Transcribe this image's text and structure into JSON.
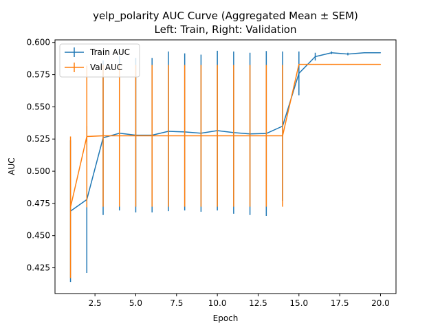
{
  "chart_data": {
    "type": "line",
    "title": "yelp_polarity AUC Curve (Aggregated Mean ± SEM)",
    "subtitle": "Left: Train, Right: Validation",
    "xlabel": "Epoch",
    "ylabel": "AUC",
    "xlim": [
      0.05,
      20.95
    ],
    "ylim": [
      0.405,
      0.602
    ],
    "x_ticks": [
      2.5,
      5.0,
      7.5,
      10.0,
      12.5,
      15.0,
      17.5,
      20.0
    ],
    "x_tick_labels": [
      "2.5",
      "5.0",
      "7.5",
      "10.0",
      "12.5",
      "15.0",
      "17.5",
      "20.0"
    ],
    "y_ticks": [
      0.425,
      0.45,
      0.475,
      0.5,
      0.525,
      0.55,
      0.575,
      0.6
    ],
    "y_tick_labels": [
      "0.425",
      "0.450",
      "0.475",
      "0.500",
      "0.525",
      "0.550",
      "0.575",
      "0.600"
    ],
    "grid": false,
    "legend_position": "upper-left",
    "x": [
      1,
      2,
      3,
      4,
      5,
      6,
      7,
      8,
      9,
      10,
      11,
      12,
      13,
      14,
      15,
      16,
      17,
      18,
      19,
      20
    ],
    "series": [
      {
        "name": "Train AUC",
        "color": "#1f77b4",
        "values": [
          0.469,
          0.478,
          0.526,
          0.5295,
          0.528,
          0.528,
          0.531,
          0.5305,
          0.5295,
          0.5315,
          0.53,
          0.529,
          0.5293,
          0.535,
          0.576,
          0.589,
          0.592,
          0.591,
          0.592,
          0.592
        ],
        "errors": [
          0.055,
          0.057,
          0.06,
          0.06,
          0.06,
          0.06,
          0.062,
          0.061,
          0.061,
          0.062,
          0.063,
          0.063,
          0.064,
          0.058,
          0.017,
          0.003,
          0.001,
          0.001,
          0.0,
          0.0
        ]
      },
      {
        "name": "Val AUC",
        "color": "#ff7f0e",
        "values": [
          0.472,
          0.527,
          0.5275,
          0.5275,
          0.5275,
          0.5275,
          0.5275,
          0.5275,
          0.5275,
          0.5275,
          0.5275,
          0.5275,
          0.5275,
          0.5275,
          0.583,
          0.583,
          0.583,
          0.583,
          0.583,
          0.583
        ],
        "errors": [
          0.055,
          0.055,
          0.055,
          0.055,
          0.055,
          0.055,
          0.055,
          0.055,
          0.055,
          0.055,
          0.055,
          0.055,
          0.055,
          0.055,
          0.0,
          0.0,
          0.0,
          0.0,
          0.0,
          0.0
        ]
      }
    ]
  }
}
